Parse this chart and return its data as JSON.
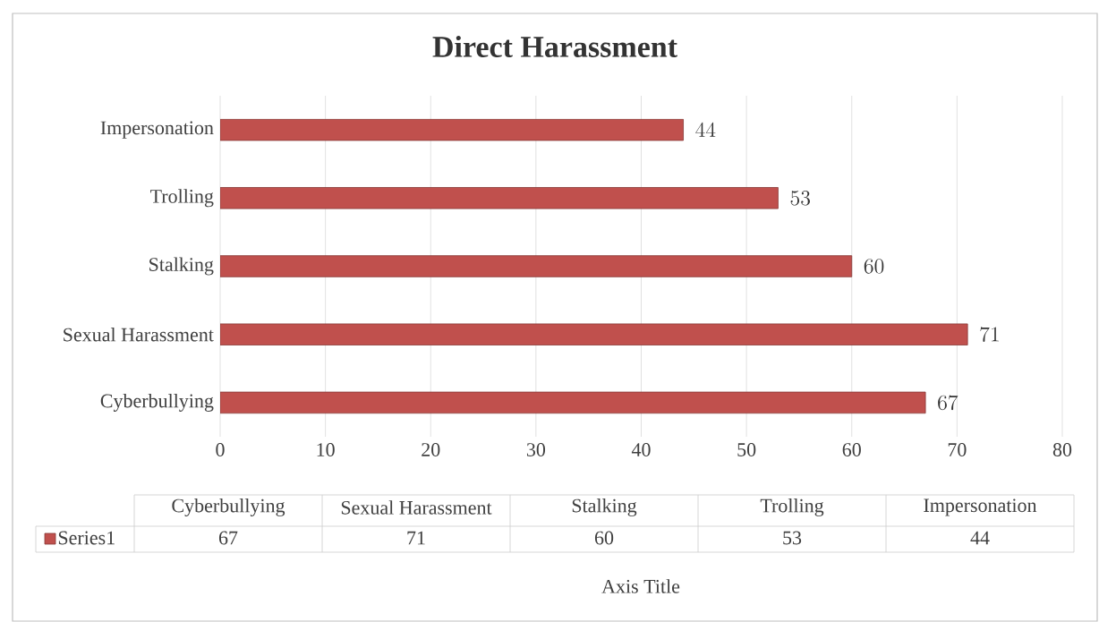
{
  "chart_data": {
    "type": "bar",
    "orientation": "horizontal",
    "title": "Direct Harassment",
    "annotations": [
      "Axis Title",
      "67",
      "71",
      "60",
      "53",
      "44"
    ],
    "categories": [
      "Impersonation",
      "Trolling",
      "Stalking",
      "Sexual Harassment",
      "Cyberbullying"
    ],
    "series": [
      {
        "name": "Series1",
        "color": "#c0504d",
        "values": [
          44,
          53,
          60,
          71,
          67
        ]
      }
    ],
    "xlim": [
      0,
      80
    ],
    "xticks": [
      0,
      10,
      20,
      30,
      40,
      50,
      60,
      70,
      80
    ],
    "grid": "x",
    "data_labels": true,
    "legend": "bottom"
  }
}
